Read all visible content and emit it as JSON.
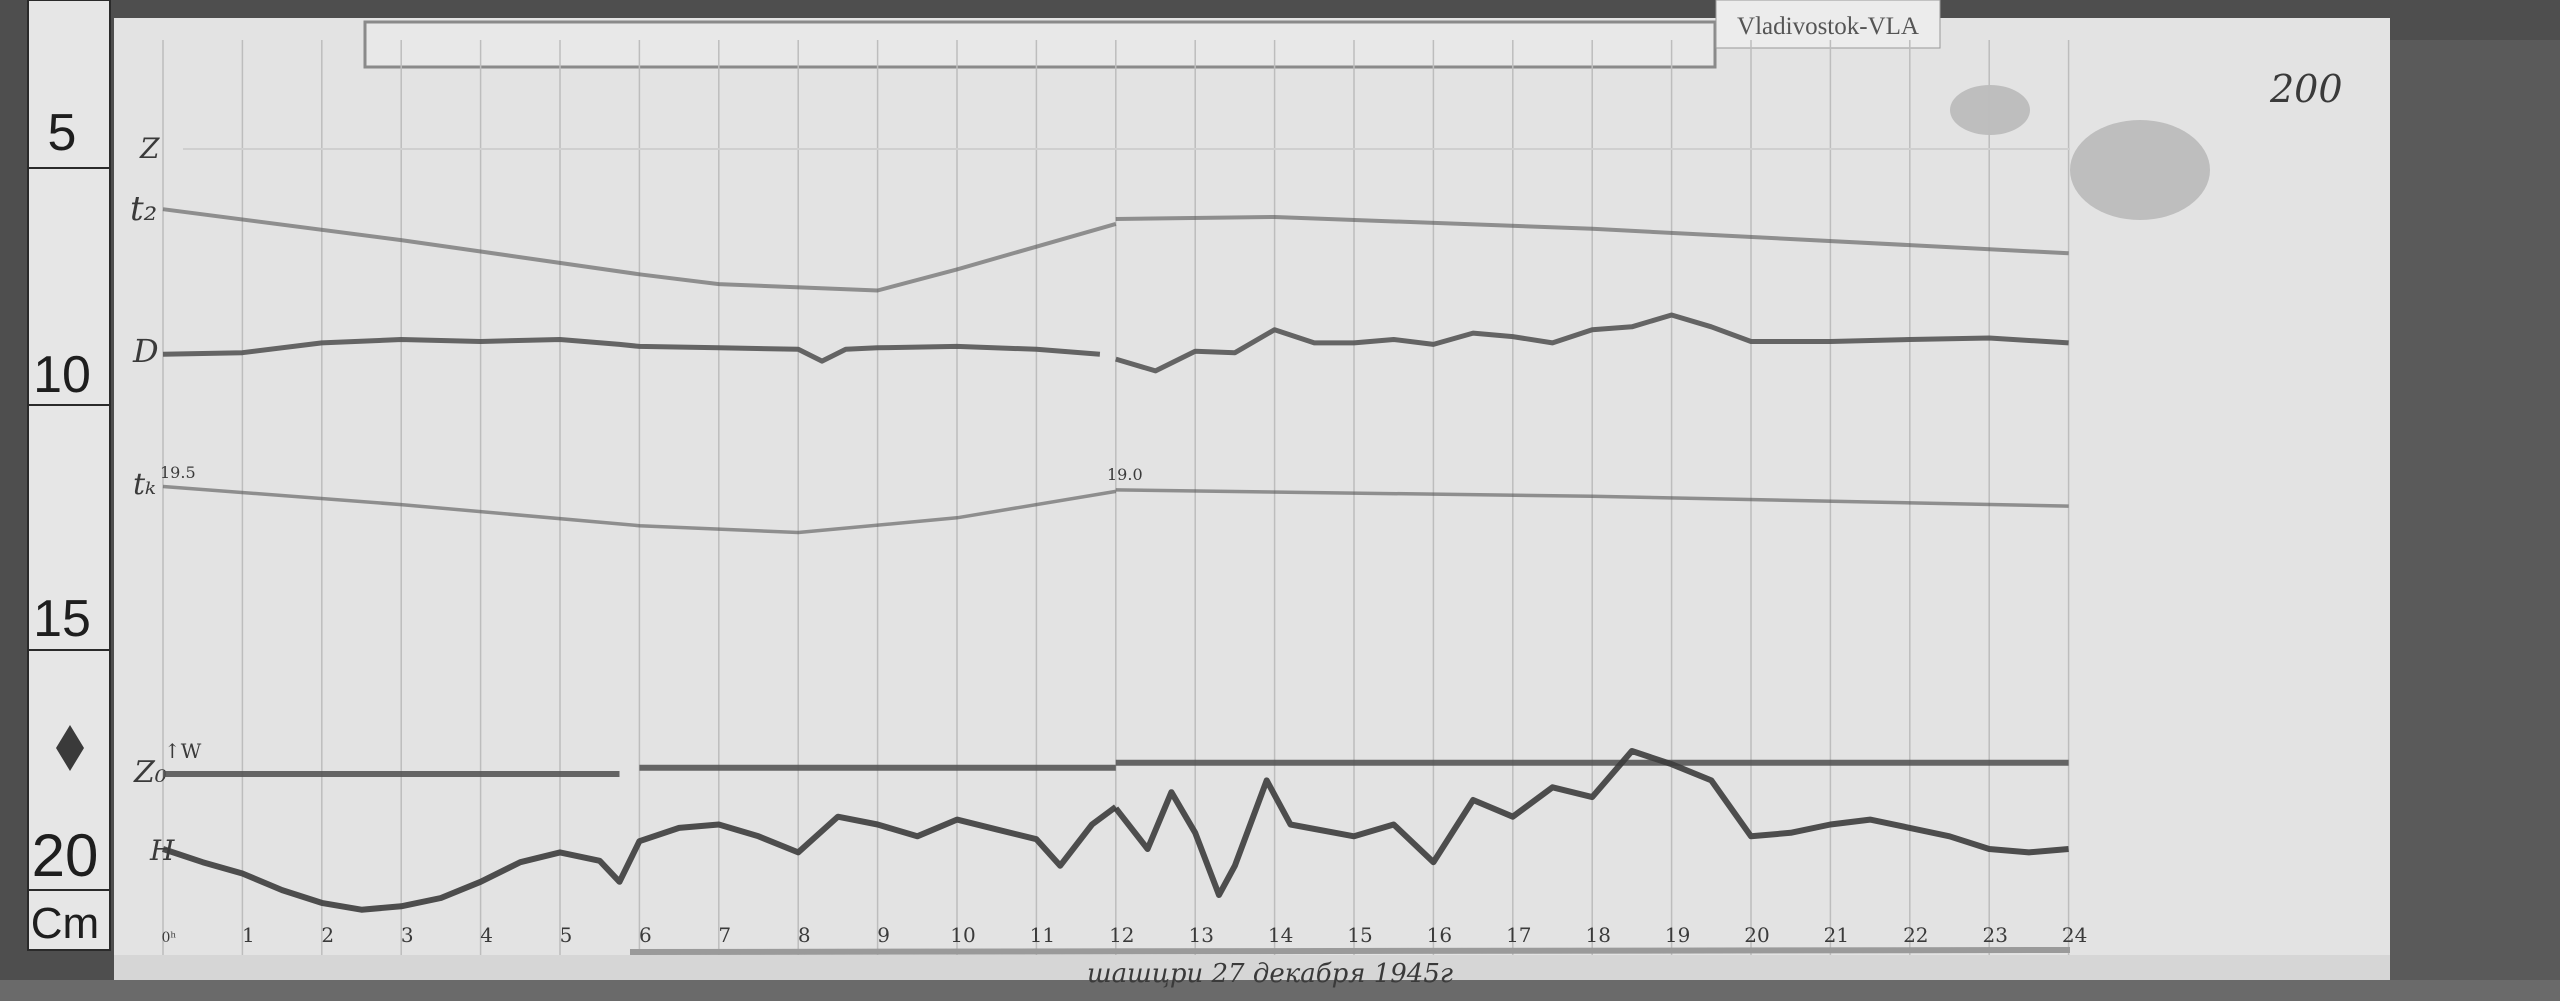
{
  "station_label": "Vladivostok-VLA",
  "sheet_number": "200",
  "date_note": "шашцри 27 декабря 1945г",
  "ruler": {
    "marks": [
      "5",
      "10",
      "15",
      "20"
    ],
    "unit": "Cm"
  },
  "trace_labels": {
    "z": "Z",
    "t2": "t₂",
    "d": "D",
    "tk": "tₖ",
    "tk_start_value": "19.5",
    "tk_mid_value": "19.0",
    "z0": "Z₀",
    "z0_arrow": "↑W",
    "h": "H"
  },
  "colors": {
    "paper": "#e2e2e2",
    "trace": "#555555",
    "dark_trace": "#3c3c3c",
    "grid": "#bdbdbd",
    "wood": "#4e4e4e"
  },
  "chart_data": {
    "type": "line",
    "title": "",
    "xlabel": "",
    "ylabel": "",
    "x_unit": "hour",
    "xlim": [
      0,
      24
    ],
    "ylim_cm_ruler": [
      3,
      22
    ],
    "y_direction": "down",
    "grid": "vertical hour lines",
    "x_tick_labels": [
      "0ʰ",
      "1",
      "2",
      "3",
      "4",
      "5",
      "6",
      "7",
      "8",
      "9",
      "10",
      "11",
      "12",
      "13",
      "14",
      "15",
      "16",
      "17",
      "18",
      "19",
      "20",
      "21",
      "22",
      "23",
      "24"
    ],
    "series": [
      {
        "name": "t₂",
        "segments": [
          [
            [
              0,
              6.67
            ],
            [
              3,
              7.3
            ],
            [
              6,
              8.0
            ],
            [
              7,
              8.2
            ],
            [
              9,
              8.33
            ],
            [
              10,
              7.9
            ],
            [
              12,
              6.97
            ]
          ],
          [
            [
              12,
              6.87
            ],
            [
              14,
              6.83
            ],
            [
              18,
              7.07
            ],
            [
              24,
              7.57
            ]
          ]
        ]
      },
      {
        "name": "D",
        "segments": [
          [
            [
              0,
              9.63
            ],
            [
              1,
              9.6
            ],
            [
              2,
              9.4
            ],
            [
              3,
              9.33
            ],
            [
              4,
              9.37
            ],
            [
              5,
              9.33
            ],
            [
              5.75,
              9.43
            ],
            [
              6,
              9.47
            ],
            [
              7,
              9.5
            ],
            [
              8,
              9.53
            ],
            [
              8.3,
              9.77
            ],
            [
              8.6,
              9.53
            ],
            [
              9,
              9.5
            ],
            [
              10,
              9.47
            ],
            [
              11,
              9.53
            ],
            [
              11.8,
              9.63
            ]
          ],
          [
            [
              12,
              9.73
            ],
            [
              12.5,
              9.97
            ],
            [
              13,
              9.57
            ],
            [
              13.5,
              9.6
            ],
            [
              14,
              9.13
            ],
            [
              14.5,
              9.4
            ],
            [
              15,
              9.4
            ],
            [
              15.5,
              9.33
            ],
            [
              16,
              9.43
            ],
            [
              16.5,
              9.2
            ],
            [
              17,
              9.27
            ],
            [
              17.5,
              9.4
            ],
            [
              18,
              9.13
            ],
            [
              18.5,
              9.07
            ],
            [
              19,
              8.83
            ],
            [
              19.5,
              9.07
            ],
            [
              20,
              9.37
            ],
            [
              21,
              9.37
            ],
            [
              22,
              9.33
            ],
            [
              23,
              9.3
            ],
            [
              24,
              9.4
            ]
          ]
        ]
      },
      {
        "name": "tₖ",
        "segments": [
          [
            [
              0,
              12.33
            ],
            [
              3,
              12.7
            ],
            [
              6,
              13.13
            ],
            [
              8,
              13.27
            ],
            [
              10,
              12.97
            ],
            [
              12,
              12.43
            ]
          ],
          [
            [
              12,
              12.4
            ],
            [
              18,
              12.53
            ],
            [
              24,
              12.73
            ]
          ]
        ]
      },
      {
        "name": "Z₀",
        "segments": [
          [
            [
              0,
              18.2
            ],
            [
              5.75,
              18.2
            ]
          ],
          [
            [
              6,
              18.07
            ],
            [
              12,
              18.07
            ]
          ],
          [
            [
              12,
              17.97
            ],
            [
              24,
              17.97
            ]
          ]
        ]
      },
      {
        "name": "H",
        "segments": [
          [
            [
              0,
              19.73
            ],
            [
              0.5,
              20.0
            ],
            [
              1,
              20.23
            ],
            [
              1.5,
              20.57
            ],
            [
              2,
              20.83
            ],
            [
              2.5,
              20.97
            ],
            [
              3,
              20.9
            ],
            [
              3.5,
              20.73
            ],
            [
              4,
              20.4
            ],
            [
              4.5,
              20.0
            ],
            [
              5,
              19.8
            ],
            [
              5.5,
              19.97
            ],
            [
              5.75,
              20.4
            ],
            [
              6,
              19.57
            ],
            [
              6.5,
              19.3
            ],
            [
              7,
              19.23
            ],
            [
              7.5,
              19.47
            ],
            [
              8,
              19.8
            ],
            [
              8.5,
              19.07
            ],
            [
              9,
              19.23
            ],
            [
              9.5,
              19.47
            ],
            [
              10,
              19.13
            ],
            [
              10.5,
              19.33
            ],
            [
              11,
              19.53
            ],
            [
              11.3,
              20.07
            ],
            [
              11.7,
              19.23
            ],
            [
              12,
              18.87
            ]
          ],
          [
            [
              12,
              18.9
            ],
            [
              12.4,
              19.73
            ],
            [
              12.7,
              18.57
            ],
            [
              13,
              19.4
            ],
            [
              13.3,
              20.67
            ],
            [
              13.5,
              20.07
            ],
            [
              13.9,
              18.33
            ],
            [
              14.2,
              19.23
            ],
            [
              15,
              19.47
            ],
            [
              15.5,
              19.23
            ],
            [
              16,
              20.0
            ],
            [
              16.5,
              18.73
            ],
            [
              17,
              19.07
            ],
            [
              17.5,
              18.47
            ],
            [
              18,
              18.67
            ],
            [
              18.5,
              17.73
            ],
            [
              19,
              18.0
            ],
            [
              19.5,
              18.33
            ],
            [
              20,
              19.47
            ],
            [
              20.5,
              19.4
            ],
            [
              21,
              19.23
            ],
            [
              21.5,
              19.13
            ],
            [
              22,
              19.3
            ],
            [
              22.5,
              19.47
            ],
            [
              23,
              19.73
            ],
            [
              23.5,
              19.8
            ],
            [
              24,
              19.73
            ]
          ]
        ]
      }
    ]
  }
}
